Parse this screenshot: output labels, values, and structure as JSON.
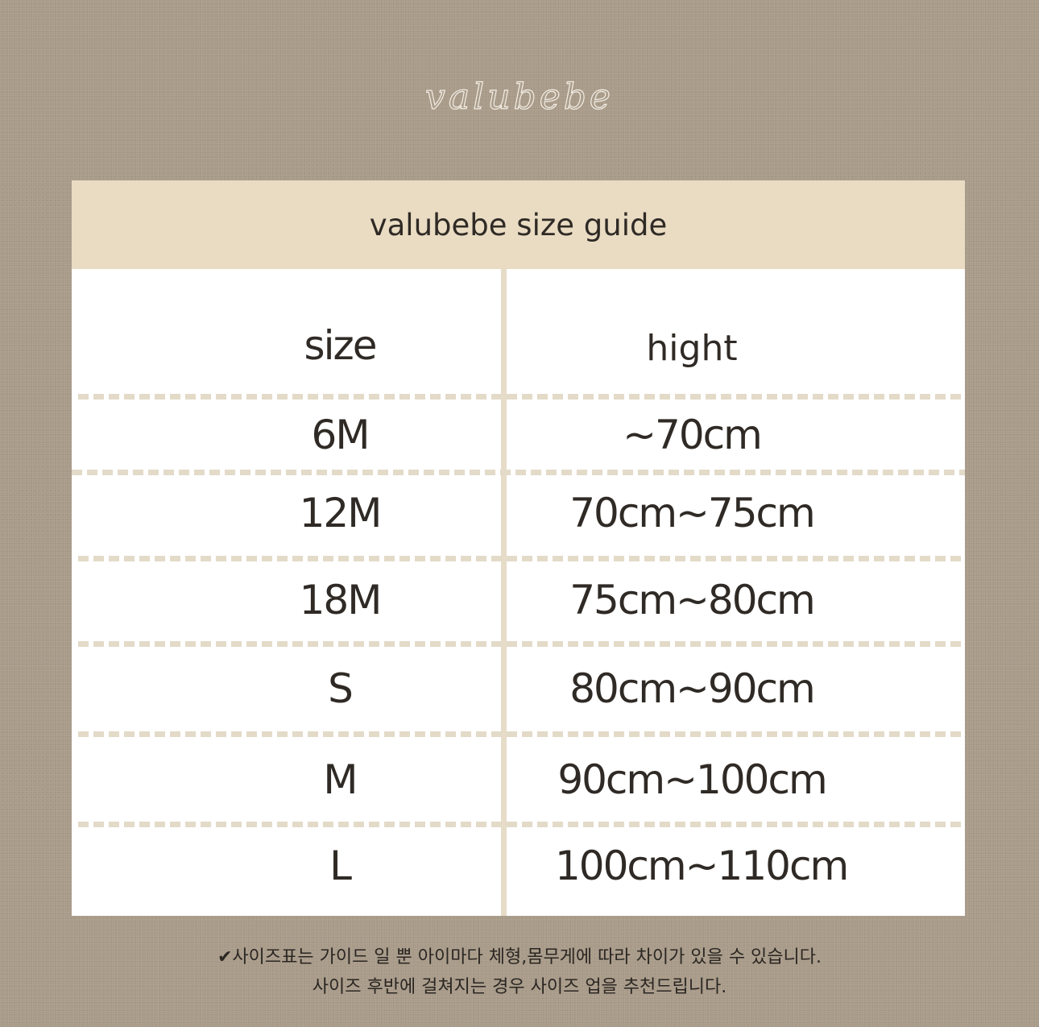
{
  "logo": "valubebe",
  "table": {
    "title": "valubebe size guide",
    "columns": [
      "size",
      "hight"
    ],
    "rows": [
      [
        "6M",
        "~70cm"
      ],
      [
        "12M",
        "70cm~75cm"
      ],
      [
        "18M",
        "75cm~80cm"
      ],
      [
        "S",
        "80cm~90cm"
      ],
      [
        "M",
        "90cm~100cm"
      ],
      [
        "L",
        "100cm~110cm"
      ]
    ]
  },
  "notes": [
    "✔사이즈표는 가이드 일 뿐 아이마다 체형,몸무게에 따라 차이가 있을 수 있습니다.",
    "사이즈 후반에 걸쳐지는 경우 사이즈 업을 추천드립니다."
  ],
  "colors": {
    "background": "#a99b89",
    "header": "#e9dcc3",
    "divider": "#e3dac8",
    "text": "#2f2a25"
  }
}
